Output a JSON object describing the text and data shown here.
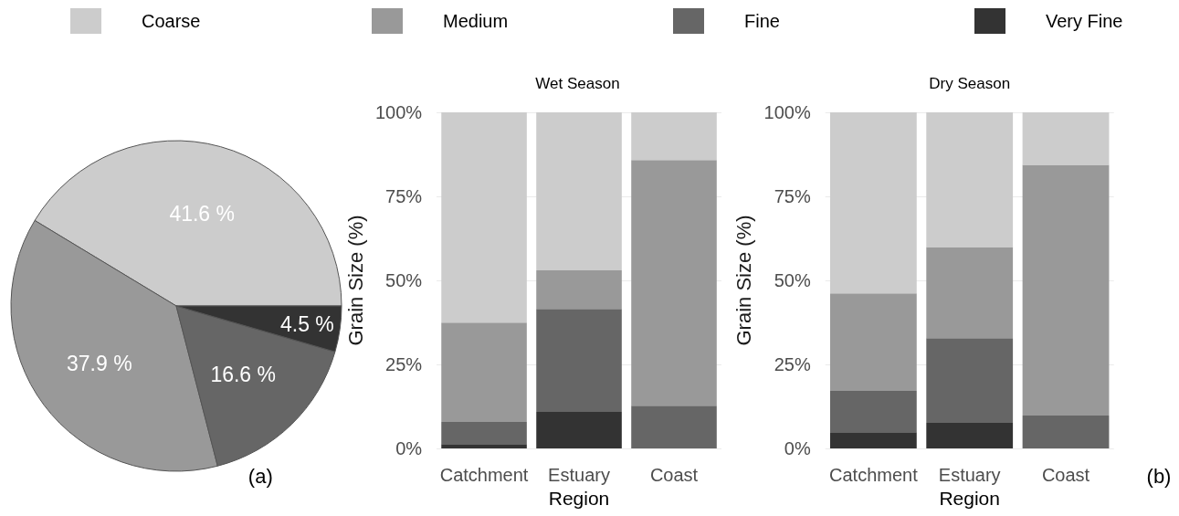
{
  "chart_data": [
    {
      "type": "pie",
      "categories": [
        "Coarse",
        "Medium",
        "Fine",
        "Very Fine"
      ],
      "values": [
        41.6,
        37.9,
        16.6,
        4.5
      ],
      "colors": [
        "#cccccc",
        "#999999",
        "#666666",
        "#333333"
      ],
      "value_labels": [
        "41.6 %",
        "37.9 %",
        "16.6 %",
        "4.5 %"
      ],
      "legend": "top",
      "annotations": [
        "(a)"
      ]
    },
    {
      "type": "bar",
      "title": "Wet Season",
      "xlabel": "Region",
      "ylabel": "Grain Size (%)",
      "categories": [
        "Catchment",
        "Estuary",
        "Coast"
      ],
      "stacked": true,
      "series": [
        {
          "name": "Very Fine",
          "color": "#333333",
          "values": [
            1.3,
            10.9,
            0
          ]
        },
        {
          "name": "Fine",
          "color": "#666666",
          "values": [
            6.6,
            30.6,
            12.7
          ]
        },
        {
          "name": "Medium",
          "color": "#999999",
          "values": [
            29.5,
            11.5,
            73.1
          ]
        },
        {
          "name": "Coarse",
          "color": "#cccccc",
          "values": [
            62.6,
            47.0,
            14.2
          ]
        }
      ],
      "ylim": [
        0,
        100
      ],
      "yticks": [
        {
          "value": 0,
          "label": "0%"
        },
        {
          "value": 25,
          "label": "25%"
        },
        {
          "value": 50,
          "label": "50%"
        },
        {
          "value": 75,
          "label": "75%"
        },
        {
          "value": 100,
          "label": "100%"
        }
      ],
      "grid": "y"
    },
    {
      "type": "bar",
      "title": "Dry Season",
      "xlabel": "Region",
      "ylabel": "Grain Size (%)",
      "categories": [
        "Catchment",
        "Estuary",
        "Coast"
      ],
      "stacked": true,
      "series": [
        {
          "name": "Very Fine",
          "color": "#333333",
          "values": [
            4.8,
            7.6,
            0
          ]
        },
        {
          "name": "Fine",
          "color": "#666666",
          "values": [
            12.3,
            25.2,
            9.8
          ]
        },
        {
          "name": "Medium",
          "color": "#999999",
          "values": [
            29.0,
            27.1,
            74.6
          ]
        },
        {
          "name": "Coarse",
          "color": "#cccccc",
          "values": [
            53.9,
            40.1,
            15.6
          ]
        }
      ],
      "ylim": [
        0,
        100
      ],
      "yticks": [
        {
          "value": 0,
          "label": "0%"
        },
        {
          "value": 25,
          "label": "25%"
        },
        {
          "value": 50,
          "label": "50%"
        },
        {
          "value": 75,
          "label": "75%"
        },
        {
          "value": 100,
          "label": "100%"
        }
      ],
      "grid": "y",
      "annotations": [
        "(b)"
      ]
    }
  ]
}
